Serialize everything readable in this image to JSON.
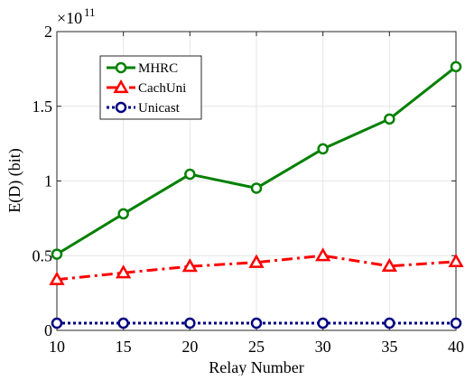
{
  "chart_data": {
    "type": "line",
    "title": "",
    "xlabel": "Relay Number",
    "ylabel": "E(D) (bit)",
    "y_exponent_label": "×10",
    "y_exponent_power": "11",
    "x": [
      10,
      15,
      20,
      25,
      30,
      35,
      40
    ],
    "xlim": [
      10,
      40
    ],
    "ylim": [
      0,
      2
    ],
    "x_ticks": [
      10,
      15,
      20,
      25,
      30,
      35,
      40
    ],
    "x_tick_labels": [
      "10",
      "15",
      "20",
      "25",
      "30",
      "35",
      "40"
    ],
    "y_ticks": [
      0,
      0.5,
      1,
      1.5,
      2
    ],
    "y_tick_labels": [
      "0",
      "0.5",
      "1",
      "1.5",
      "2"
    ],
    "grid": true,
    "legend_position": "top-left",
    "series": [
      {
        "name": "MHRC",
        "values": [
          0.51,
          0.78,
          1.045,
          0.952,
          1.215,
          1.415,
          1.765
        ],
        "color": "#008000",
        "line_style": "solid",
        "marker": "circle"
      },
      {
        "name": "CachUni",
        "values": [
          0.34,
          0.385,
          0.428,
          0.455,
          0.5,
          0.43,
          0.46
        ],
        "color": "#ff0000",
        "line_style": "dashdot",
        "marker": "triangle"
      },
      {
        "name": "Unicast",
        "values": [
          0.048,
          0.048,
          0.048,
          0.048,
          0.048,
          0.048,
          0.048
        ],
        "color": "#000080",
        "line_style": "dotted",
        "marker": "circle"
      }
    ]
  }
}
